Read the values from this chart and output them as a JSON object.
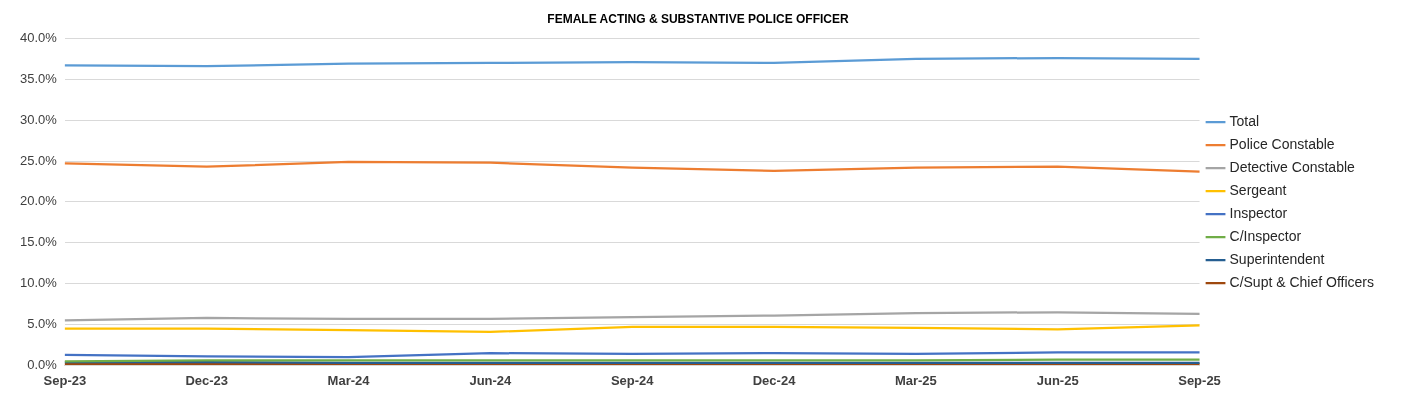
{
  "chart_data": {
    "type": "line",
    "title": "FEMALE ACTING & SUBSTANTIVE POLICE OFFICER",
    "categories": [
      "Sep-23",
      "Dec-23",
      "Mar-24",
      "Jun-24",
      "Sep-24",
      "Dec-24",
      "Mar-25",
      "Jun-25",
      "Sep-25"
    ],
    "ylim": [
      0,
      40
    ],
    "yticks": [
      {
        "value": 0,
        "label": "0.0%"
      },
      {
        "value": 5,
        "label": "5.0%"
      },
      {
        "value": 10,
        "label": "10.0%"
      },
      {
        "value": 15,
        "label": "15.0%"
      },
      {
        "value": 20,
        "label": "20.0%"
      },
      {
        "value": 25,
        "label": "25.0%"
      },
      {
        "value": 30,
        "label": "30.0%"
      },
      {
        "value": 35,
        "label": "35.0%"
      },
      {
        "value": 40,
        "label": "40.0%"
      }
    ],
    "grid": "y",
    "legend": "right",
    "marker": "none",
    "line_style": "solid",
    "series": [
      {
        "name": "Total",
        "color": "#5b9bd5",
        "values": [
          36.7,
          36.6,
          36.9,
          37.0,
          37.1,
          37.0,
          37.5,
          37.6,
          37.5
        ]
      },
      {
        "name": "Police Constable",
        "color": "#ed7d31",
        "values": [
          24.7,
          24.3,
          24.9,
          24.8,
          24.2,
          23.8,
          24.2,
          24.3,
          23.7
        ]
      },
      {
        "name": "Detective Constable",
        "color": "#a5a5a5",
        "values": [
          5.5,
          5.8,
          5.7,
          5.7,
          5.9,
          6.1,
          6.4,
          6.5,
          6.3
        ]
      },
      {
        "name": "Sergeant",
        "color": "#ffc000",
        "values": [
          4.5,
          4.5,
          4.3,
          4.1,
          4.7,
          4.7,
          4.6,
          4.4,
          4.9
        ]
      },
      {
        "name": "Inspector",
        "color": "#4472c4",
        "values": [
          1.3,
          1.1,
          1.0,
          1.5,
          1.4,
          1.5,
          1.4,
          1.6,
          1.6
        ]
      },
      {
        "name": "C/Inspector",
        "color": "#70ad47",
        "values": [
          0.5,
          0.6,
          0.6,
          0.6,
          0.6,
          0.6,
          0.6,
          0.7,
          0.7
        ]
      },
      {
        "name": "Superintendent",
        "color": "#255e91",
        "values": [
          0.4,
          0.4,
          0.3,
          0.3,
          0.3,
          0.3,
          0.3,
          0.3,
          0.3
        ]
      },
      {
        "name": "C/Supt & Chief Officers",
        "color": "#9e480e",
        "values": [
          0.2,
          0.2,
          0.2,
          0.2,
          0.2,
          0.2,
          0.2,
          0.2,
          0.2
        ]
      }
    ]
  }
}
